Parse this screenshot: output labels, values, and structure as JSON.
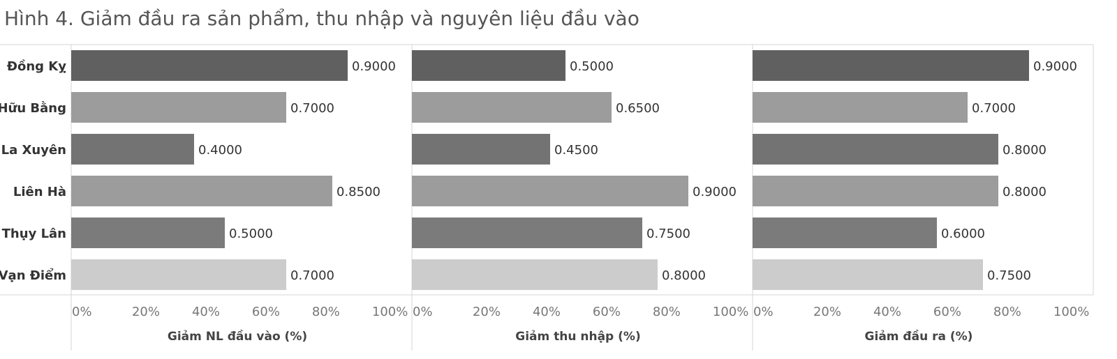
{
  "chart_data": {
    "type": "bar",
    "orientation": "horizontal",
    "title": "Hình 4. Giảm đầu ra sản phẩm, thu nhập và nguyên liệu đầu vào",
    "categories": [
      "Đồng Kỵ",
      "Hữu Bằng",
      "La Xuyên",
      "Liên Hà",
      "Thụy Lân",
      "Vạn Điểm"
    ],
    "bar_colors": [
      "#606060",
      "#9c9c9c",
      "#737373",
      "#9c9c9c",
      "#7b7b7b",
      "#cccccc"
    ],
    "xlim": [
      0,
      1
    ],
    "x_ticks": [
      "0%",
      "20%",
      "40%",
      "60%",
      "80%",
      "100%"
    ],
    "grid": false,
    "panels": [
      {
        "xlabel": "Giảm NL đầu vào (%)",
        "values": [
          0.9,
          0.7,
          0.4,
          0.85,
          0.5,
          0.7
        ],
        "value_labels": [
          "0.9000",
          "0.7000",
          "0.4000",
          "0.8500",
          "0.5000",
          "0.7000"
        ]
      },
      {
        "xlabel": "Giảm thu nhập (%)",
        "values": [
          0.5,
          0.65,
          0.45,
          0.9,
          0.75,
          0.8
        ],
        "value_labels": [
          "0.5000",
          "0.6500",
          "0.4500",
          "0.9000",
          "0.7500",
          "0.8000"
        ]
      },
      {
        "xlabel": "Giảm đầu ra (%)",
        "values": [
          0.9,
          0.7,
          0.8,
          0.8,
          0.6,
          0.75
        ],
        "value_labels": [
          "0.9000",
          "0.7000",
          "0.8000",
          "0.8000",
          "0.6000",
          "0.7500"
        ]
      }
    ]
  }
}
